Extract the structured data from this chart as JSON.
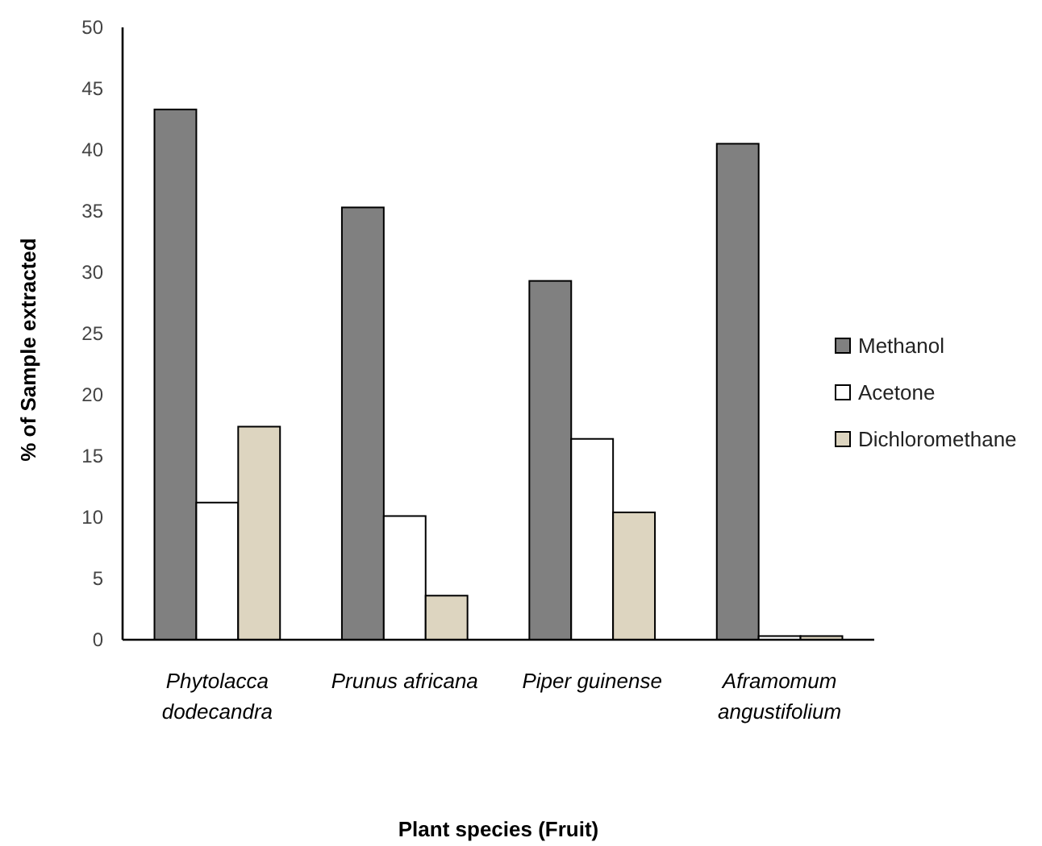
{
  "chart_data": {
    "type": "bar",
    "xlabel": "Plant species (Fruit)",
    "ylabel": "% of Sample extracted",
    "categories": [
      "Phytolacca dodecandra",
      "Prunus africana",
      "Piper guinense",
      "Aframomum angustifolium"
    ],
    "series": [
      {
        "name": "Methanol",
        "color": "#808080",
        "values": [
          43.3,
          35.3,
          29.3,
          40.5
        ]
      },
      {
        "name": "Acetone",
        "color": "#ffffff",
        "values": [
          11.2,
          10.1,
          16.4,
          0.3
        ]
      },
      {
        "name": "Dichloromethane",
        "color": "#ddd5c0",
        "values": [
          17.4,
          3.6,
          10.4,
          0.3
        ]
      }
    ],
    "ylim": [
      0,
      50
    ],
    "yticks": [
      0,
      5,
      10,
      15,
      20,
      25,
      30,
      35,
      40,
      45,
      50
    ],
    "grid": false,
    "legend": "right"
  }
}
